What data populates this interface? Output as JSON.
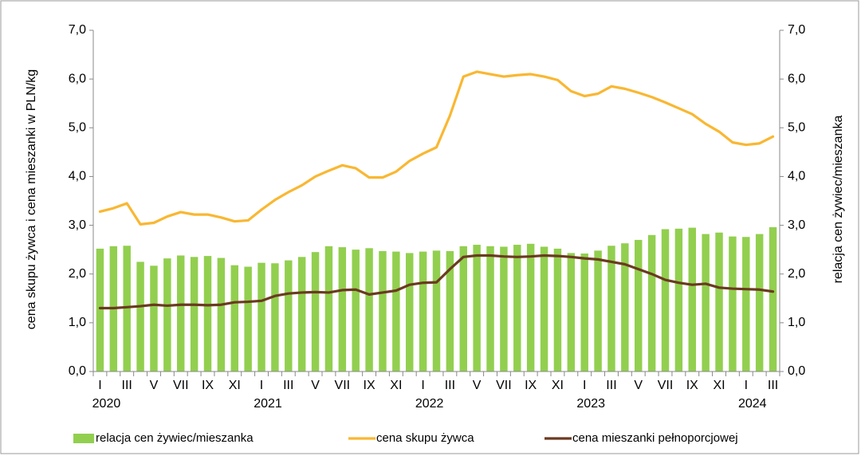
{
  "chart_data": {
    "type": "bar-line",
    "y_label": "cena skupu żywca i cena mieszanki w PLN/kg",
    "y2_label": "relacja cen żywiec/mieszanka",
    "categories": [
      "I",
      null,
      "III",
      null,
      "V",
      null,
      "VII",
      null,
      "IX",
      null,
      "XI",
      null,
      "I",
      null,
      "III",
      null,
      "V",
      null,
      "VII",
      null,
      "IX",
      null,
      "XI",
      null,
      "I",
      null,
      "III",
      null,
      "V",
      null,
      "VII",
      null,
      "IX",
      null,
      "XI",
      null,
      "I",
      null,
      "III",
      null,
      "V",
      null,
      "VII",
      null,
      "IX",
      null,
      "XI",
      null,
      "I",
      null,
      "III"
    ],
    "years": [
      "2020",
      "2021",
      "2022",
      "2023",
      "2024"
    ],
    "ylim": [
      0,
      7
    ],
    "yticks": [
      {
        "value": 0,
        "label": "0,0"
      },
      {
        "value": 1,
        "label": "1,0"
      },
      {
        "value": 2,
        "label": "2,0"
      },
      {
        "value": 3,
        "label": "3,0"
      },
      {
        "value": 4,
        "label": "4,0"
      },
      {
        "value": 5,
        "label": "5,0"
      },
      {
        "value": 6,
        "label": "6,0"
      },
      {
        "value": 7,
        "label": "7,0"
      }
    ],
    "y2lim": [
      0,
      7
    ],
    "y2ticks": [
      {
        "value": 0,
        "label": "0,0"
      },
      {
        "value": 1,
        "label": "1,0"
      },
      {
        "value": 2,
        "label": "2,0"
      },
      {
        "value": 3,
        "label": "3,0"
      },
      {
        "value": 4,
        "label": "4,0"
      },
      {
        "value": 5,
        "label": "5,0"
      },
      {
        "value": 6,
        "label": "6,0"
      },
      {
        "value": 7,
        "label": "7,0"
      }
    ],
    "series": [
      {
        "name": "relacja cen żywiec/mieszanka",
        "kind": "bar",
        "axis": "y2",
        "color": "#92cf4f",
        "values": [
          2.52,
          2.57,
          2.58,
          2.25,
          2.17,
          2.32,
          2.38,
          2.35,
          2.37,
          2.33,
          2.18,
          2.15,
          2.23,
          2.22,
          2.28,
          2.35,
          2.45,
          2.57,
          2.55,
          2.5,
          2.53,
          2.47,
          2.46,
          2.43,
          2.46,
          2.48,
          2.47,
          2.57,
          2.6,
          2.57,
          2.56,
          2.6,
          2.62,
          2.56,
          2.52,
          2.43,
          2.42,
          2.48,
          2.58,
          2.63,
          2.7,
          2.8,
          2.92,
          2.93,
          2.95,
          2.82,
          2.85,
          2.77,
          2.76,
          2.82,
          2.96
        ]
      },
      {
        "name": "cena skupu żywca",
        "kind": "line",
        "color": "#f9b732",
        "values": [
          3.28,
          3.35,
          3.45,
          3.02,
          3.05,
          3.18,
          3.27,
          3.22,
          3.22,
          3.16,
          3.08,
          3.1,
          3.32,
          3.52,
          3.68,
          3.82,
          4.0,
          4.12,
          4.23,
          4.17,
          3.98,
          3.98,
          4.1,
          4.32,
          4.47,
          4.6,
          5.25,
          6.05,
          6.15,
          6.1,
          6.05,
          6.08,
          6.1,
          6.05,
          5.98,
          5.75,
          5.65,
          5.7,
          5.85,
          5.8,
          5.72,
          5.63,
          5.52,
          5.4,
          5.28,
          5.08,
          4.92,
          4.7,
          4.65,
          4.68,
          4.82
        ]
      },
      {
        "name": "cena mieszanki pełnoporcjowej",
        "kind": "line",
        "color": "#6b3a20",
        "values": [
          1.3,
          1.3,
          1.32,
          1.34,
          1.37,
          1.35,
          1.37,
          1.37,
          1.36,
          1.37,
          1.42,
          1.43,
          1.45,
          1.55,
          1.6,
          1.62,
          1.63,
          1.62,
          1.67,
          1.68,
          1.58,
          1.62,
          1.66,
          1.78,
          1.82,
          1.83,
          2.1,
          2.35,
          2.38,
          2.38,
          2.36,
          2.35,
          2.36,
          2.38,
          2.37,
          2.35,
          2.32,
          2.3,
          2.25,
          2.2,
          2.1,
          2.0,
          1.88,
          1.82,
          1.78,
          1.8,
          1.72,
          1.7,
          1.69,
          1.68,
          1.64
        ]
      }
    ],
    "legend": "bottom"
  }
}
